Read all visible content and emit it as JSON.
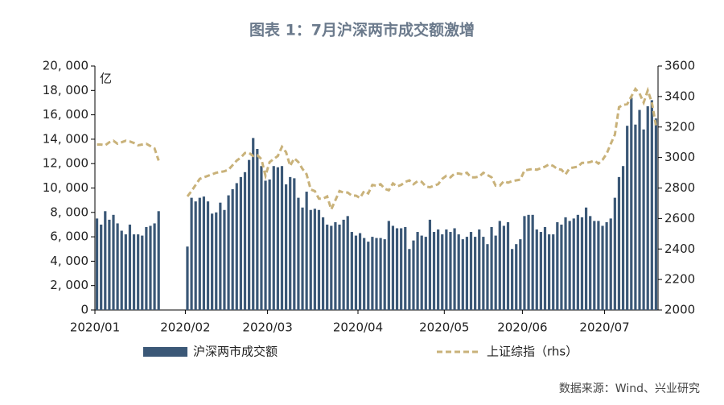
{
  "chart_data": {
    "type": "bar_line",
    "title": "图表 1：7月沪深两市成交额激增",
    "unit_label": "亿",
    "source": "数据来源：Wind、兴业研究",
    "categories": [
      "2020/01",
      null,
      null,
      null,
      null,
      null,
      null,
      null,
      null,
      null,
      null,
      null,
      null,
      null,
      null,
      null,
      null,
      null,
      null,
      null,
      null,
      null,
      "2020/02",
      null,
      null,
      null,
      null,
      null,
      null,
      null,
      null,
      null,
      null,
      null,
      null,
      null,
      null,
      null,
      null,
      null,
      null,
      null,
      "2020/03",
      null,
      null,
      null,
      null,
      null,
      null,
      null,
      null,
      null,
      null,
      null,
      null,
      null,
      null,
      null,
      null,
      null,
      null,
      null,
      null,
      null,
      "2020/04",
      null,
      null,
      null,
      null,
      null,
      null,
      null,
      null,
      null,
      null,
      null,
      null,
      null,
      null,
      null,
      null,
      null,
      null,
      null,
      null,
      "2020/05",
      null,
      null,
      null,
      null,
      null,
      null,
      null,
      null,
      null,
      null,
      null,
      null,
      null,
      null,
      null,
      null,
      null,
      null,
      "2020/06",
      null,
      null,
      null,
      null,
      null,
      null,
      null,
      null,
      null,
      null,
      null,
      null,
      null,
      null,
      null,
      null,
      null,
      null,
      null,
      "2020/07",
      null,
      null,
      null,
      null,
      null,
      null,
      null,
      null,
      null,
      null,
      null,
      null
    ],
    "series": [
      {
        "name": "沪深两市成交额",
        "color": "#3b5877",
        "values": [
          7500,
          7000,
          8100,
          7400,
          7800,
          7100,
          6500,
          6200,
          7000,
          6200,
          6200,
          6100,
          6800,
          6900,
          7100,
          8100,
          null,
          null,
          null,
          null,
          null,
          null,
          5200,
          9200,
          8900,
          9200,
          9300,
          8900,
          7900,
          8000,
          8800,
          8200,
          9400,
          9900,
          10400,
          10900,
          11300,
          12300,
          14100,
          13200,
          11800,
          10600,
          10700,
          11800,
          11700,
          11800,
          10300,
          10900,
          10800,
          9200,
          8400,
          9700,
          8200,
          8300,
          8200,
          7600,
          7000,
          6900,
          7200,
          7000,
          7400,
          7700,
          6400,
          6100,
          6300,
          5900,
          5600,
          6000,
          5900,
          5900,
          5800,
          7300,
          6900,
          6700,
          6700,
          6800,
          5000,
          5700,
          6400,
          6100,
          6000,
          7400,
          6400,
          6600,
          6200,
          6600,
          6400,
          6700,
          6200,
          5800,
          6000,
          6400,
          6000,
          6600,
          6000,
          5400,
          6800,
          6100,
          7300,
          6900,
          7200,
          5000,
          5400,
          5800,
          7700,
          7800,
          7800,
          6600,
          6400,
          6800,
          6200,
          6200,
          7200,
          7000,
          7600,
          7300,
          7500,
          7800,
          7600,
          8400,
          7700,
          7300,
          7300,
          6900,
          7200,
          7500,
          9200,
          10900,
          11800,
          15100,
          17400,
          15200,
          16400,
          14800,
          16700,
          17200,
          15700
        ]
      },
      {
        "name": "上证综指（rhs）",
        "color": "#c9b27a",
        "axis": "y2",
        "values": [
          3085,
          3085,
          3080,
          3100,
          3110,
          3090,
          3100,
          3110,
          3105,
          3095,
          3080,
          3085,
          3090,
          3075,
          3060,
          2980,
          null,
          null,
          null,
          null,
          null,
          null,
          2745,
          2780,
          2820,
          2860,
          2870,
          2880,
          2890,
          2900,
          2905,
          2910,
          2920,
          2950,
          2980,
          3000,
          3030,
          3030,
          3010,
          3015,
          2990,
          2880,
          2970,
          2990,
          3010,
          3070,
          3035,
          2945,
          2995,
          2970,
          2925,
          2890,
          2790,
          2780,
          2730,
          2730,
          2745,
          2660,
          2720,
          2780,
          2770,
          2770,
          2750,
          2750,
          2735,
          2780,
          2765,
          2820,
          2815,
          2825,
          2795,
          2785,
          2830,
          2810,
          2820,
          2840,
          2850,
          2825,
          2845,
          2840,
          2810,
          2805,
          2815,
          2825,
          2860,
          2880,
          2870,
          2895,
          2895,
          2890,
          2900,
          2870,
          2870,
          2875,
          2900,
          2885,
          2870,
          2815,
          2815,
          2845,
          2835,
          2845,
          2850,
          2855,
          2915,
          2920,
          2925,
          2920,
          2930,
          2940,
          2955,
          2945,
          2925,
          2920,
          2890,
          2930,
          2935,
          2940,
          2965,
          2965,
          2970,
          2980,
          2960,
          2985,
          3025,
          3090,
          3150,
          3330,
          3345,
          3350,
          3400,
          3450,
          3420,
          3360,
          3440,
          3360,
          3210
        ]
      }
    ],
    "ylim": [
      0,
      20000
    ],
    "yticks": [
      0,
      {
        "value": 2000,
        "label": "2, 000"
      },
      {
        "value": 4000,
        "label": "4, 000"
      },
      {
        "value": 6000,
        "label": "6, 000"
      },
      {
        "value": 8000,
        "label": "8, 000"
      },
      {
        "value": 10000,
        "label": "10, 000"
      },
      {
        "value": 12000,
        "label": "12, 000"
      },
      {
        "value": 14000,
        "label": "14, 000"
      },
      {
        "value": 16000,
        "label": "16, 000"
      },
      {
        "value": 18000,
        "label": "18, 000"
      },
      {
        "value": 20000,
        "label": "20, 000"
      }
    ],
    "y2lim": [
      2000,
      3600
    ],
    "y2ticks": [
      2000,
      2200,
      2400,
      2600,
      2800,
      3000,
      3200,
      3400,
      3600
    ],
    "legend": "bottom"
  }
}
